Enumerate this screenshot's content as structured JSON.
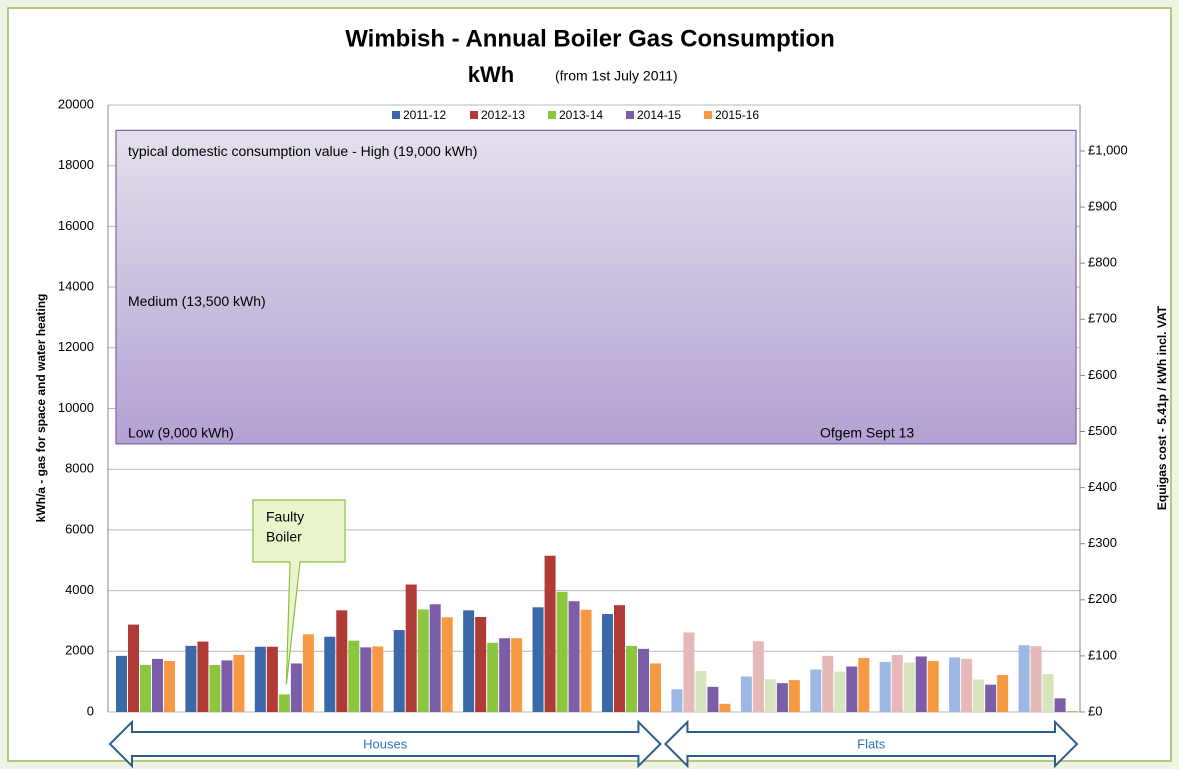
{
  "chart_data": {
    "type": "bar",
    "title": "Wimbish - Annual Boiler Gas Consumption",
    "subtitle": "kWh",
    "subtitle_note": "(from 1st July 2011)",
    "ylabel": "kWh/a - gas for space and water heating",
    "y2label": "Equigas cost - 5.41p / kWh incl. VAT",
    "categories": [
      null,
      null,
      null,
      null,
      null,
      null,
      null,
      null,
      null,
      null,
      null,
      null,
      null,
      null
    ],
    "series": [
      {
        "name": "2011-12",
        "color": "#3a68a8",
        "colors": [
          "#3a68a8",
          "#3a68a8",
          "#3a68a8",
          "#3a68a8",
          "#3a68a8",
          "#3a68a8",
          "#3a68a8",
          "#3a68a8",
          "#9db8e3",
          "#9db8e3",
          "#9db8e3",
          "#9db8e3",
          "#9db8e3",
          "#9db8e3"
        ],
        "values": [
          1850,
          2180,
          2150,
          2480,
          2700,
          3350,
          3450,
          3230,
          750,
          1170,
          1400,
          1650,
          1800,
          2200
        ]
      },
      {
        "name": "2012-13",
        "color": "#b03a35",
        "colors": [
          "#b03a35",
          "#b03a35",
          "#b03a35",
          "#b03a35",
          "#b03a35",
          "#b03a35",
          "#b03a35",
          "#b03a35",
          "#e6b8b7",
          "#e6b8b7",
          "#e6b8b7",
          "#e6b8b7",
          "#e6b8b7",
          "#e6b8b7"
        ],
        "values": [
          2880,
          2320,
          2150,
          3350,
          4200,
          3130,
          5150,
          3520,
          2620,
          2330,
          1850,
          1880,
          1750,
          2170
        ]
      },
      {
        "name": "2013-14",
        "color": "#8cc63f",
        "colors": [
          "#8cc63f",
          "#8cc63f",
          "#8cc63f",
          "#8cc63f",
          "#8cc63f",
          "#8cc63f",
          "#8cc63f",
          "#8cc63f",
          "#d7e4bd",
          "#d7e4bd",
          "#d7e4bd",
          "#d7e4bd",
          "#d7e4bd",
          "#d7e4bd"
        ],
        "values": [
          1550,
          1550,
          580,
          2350,
          3380,
          2280,
          3960,
          2180,
          1350,
          1080,
          1330,
          1630,
          1070,
          1250
        ]
      },
      {
        "name": "2014-15",
        "color": "#7b5ea7",
        "colors": [
          "#7b5ea7",
          "#7b5ea7",
          "#7b5ea7",
          "#7b5ea7",
          "#7b5ea7",
          "#7b5ea7",
          "#7b5ea7",
          "#7b5ea7",
          "#7b5ea7",
          "#7b5ea7",
          "#7b5ea7",
          "#7b5ea7",
          "#7b5ea7",
          "#7b5ea7"
        ],
        "values": [
          1750,
          1700,
          1600,
          2130,
          3550,
          2430,
          3650,
          2080,
          830,
          950,
          1500,
          1830,
          900,
          450
        ]
      },
      {
        "name": "2015-16",
        "color": "#f59a43",
        "colors": [
          "#f59a43",
          "#f59a43",
          "#f59a43",
          "#f59a43",
          "#f59a43",
          "#f59a43",
          "#f59a43",
          "#f59a43",
          "#f59a43",
          "#f59a43",
          "#f59a43",
          "#f59a43",
          "#f59a43",
          "#f59a43"
        ],
        "values": [
          1680,
          1880,
          2560,
          2160,
          3120,
          2430,
          3370,
          1600,
          270,
          1050,
          1780,
          1680,
          1220,
          30
        ]
      }
    ],
    "ylim": [
      0,
      20000
    ],
    "yticks": [
      0,
      2000,
      4000,
      6000,
      8000,
      10000,
      12000,
      14000,
      16000,
      18000,
      20000
    ],
    "y2lim": [
      0,
      1082
    ],
    "y2ticks": [
      {
        "value": 0,
        "label": "£0"
      },
      {
        "value": 100,
        "label": "£100"
      },
      {
        "value": 200,
        "label": "£200"
      },
      {
        "value": 300,
        "label": "£300"
      },
      {
        "value": 400,
        "label": "£400"
      },
      {
        "value": 500,
        "label": "£500"
      },
      {
        "value": 600,
        "label": "£600"
      },
      {
        "value": 700,
        "label": "£700"
      },
      {
        "value": 800,
        "label": "£800"
      },
      {
        "value": 900,
        "label": "£900"
      },
      {
        "value": 1000,
        "label": "£1,000"
      }
    ],
    "grid": true,
    "legend": "top",
    "band": {
      "low": 9000,
      "high": 19000,
      "color_top": "#e4e0ec",
      "color_bottom": "#b2a1d3",
      "labels": [
        "typical domestic consumption value - High (19,000 kWh)",
        "Medium (13,500 kWh)",
        "Low (9,000 kWh)"
      ],
      "label_values": [
        19000,
        13500,
        9000
      ],
      "source": "Ofgem Sept 13"
    },
    "callout": {
      "lines": [
        "Faulty",
        "Boiler"
      ],
      "category": 2,
      "series": 2
    },
    "groups": [
      {
        "label": "Houses",
        "from": 0,
        "to": 7
      },
      {
        "label": "Flats",
        "from": 8,
        "to": 13
      }
    ]
  }
}
